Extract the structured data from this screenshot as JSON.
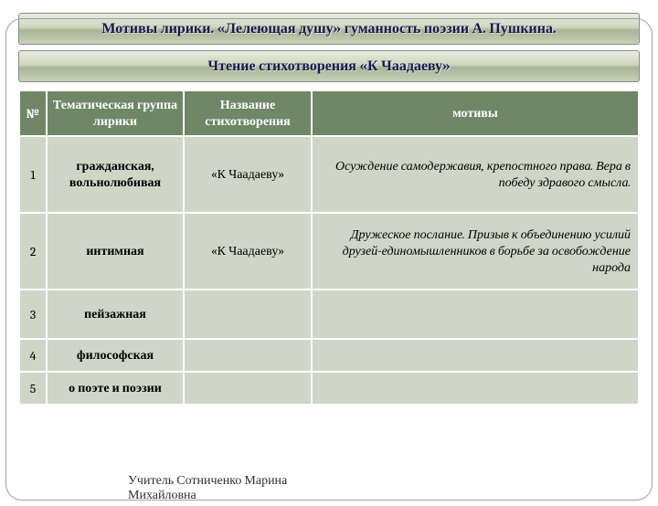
{
  "banner1": "Мотивы лирики. «Лелеющая душу» гуманность поэзии А. Пушкина.",
  "banner2": "Чтение стихотворения «К Чаадаеву»",
  "headers": {
    "num": "№",
    "group": "Тематическая группа лирики",
    "title": "Название стихотворения",
    "motiv": "мотивы"
  },
  "rows": [
    {
      "num": "1",
      "group": "гражданская, вольнолюбивая",
      "title": "«К Чаадаеву»",
      "motiv": "Осуждение самодержавия, крепостного права. Вера в победу здравого смысла."
    },
    {
      "num": "2",
      "group": "интимная",
      "title": "«К Чаадаеву»",
      "motiv": "Дружеское послание.  Призыв  к объединению усилий друзей-единомышленников в борьбе за освобождение народа"
    },
    {
      "num": "3",
      "group": "пейзажная",
      "title": "",
      "motiv": ""
    },
    {
      "num": "4",
      "group": "философская",
      "title": "",
      "motiv": ""
    },
    {
      "num": "5",
      "group": "о поэте и поэзии",
      "title": "",
      "motiv": ""
    }
  ],
  "footer_line1": "Учитель Сотниченко Марина",
  "footer_line2": "Михайловна"
}
